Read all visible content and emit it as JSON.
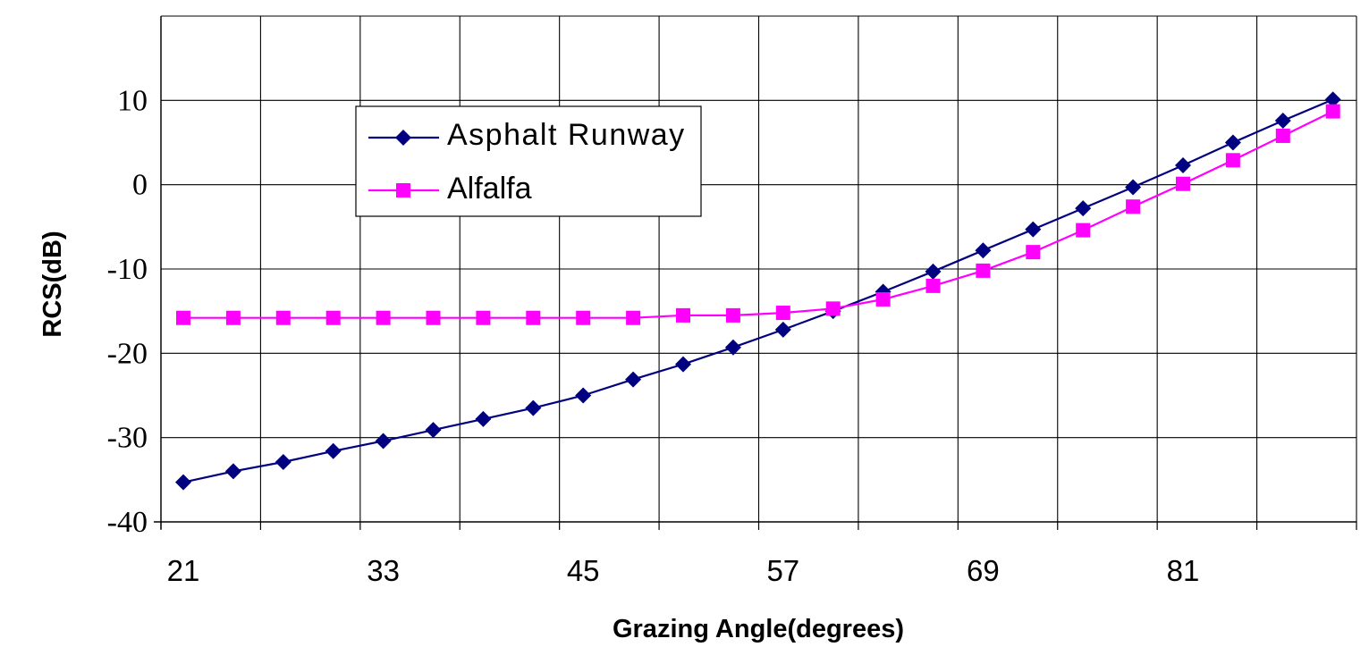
{
  "chart_data": {
    "type": "line",
    "title": "",
    "xlabel": "Grazing Angle(degrees)",
    "ylabel": "RCS(dB)",
    "x": [
      21,
      24,
      27,
      30,
      33,
      36,
      39,
      42,
      45,
      48,
      51,
      54,
      57,
      60,
      63,
      66,
      69,
      72,
      75,
      78,
      81,
      84,
      87,
      90
    ],
    "xticks": [
      21,
      33,
      45,
      57,
      69,
      81
    ],
    "ylim": [
      -40,
      20
    ],
    "yticks": [
      -40,
      -30,
      -20,
      -10,
      0,
      10
    ],
    "grid": true,
    "legend_position": "top-left",
    "series": [
      {
        "name": "Asphalt Runway",
        "color": "#000080",
        "marker": "diamond",
        "values": [
          -35.3,
          -34.0,
          -32.9,
          -31.6,
          -30.4,
          -29.1,
          -27.8,
          -26.5,
          -25.0,
          -23.1,
          -21.3,
          -19.3,
          -17.2,
          -15.0,
          -12.7,
          -10.3,
          -7.8,
          -5.3,
          -2.8,
          -0.3,
          2.3,
          5.0,
          7.6,
          10.1
        ]
      },
      {
        "name": "Alfalfa",
        "color": "#FF00FF",
        "marker": "square",
        "values": [
          -15.8,
          -15.8,
          -15.8,
          -15.8,
          -15.8,
          -15.8,
          -15.8,
          -15.8,
          -15.8,
          -15.8,
          -15.5,
          -15.5,
          -15.2,
          -14.7,
          -13.6,
          -12.0,
          -10.2,
          -8.0,
          -5.4,
          -2.6,
          0.1,
          2.9,
          5.8,
          8.7
        ]
      }
    ]
  }
}
